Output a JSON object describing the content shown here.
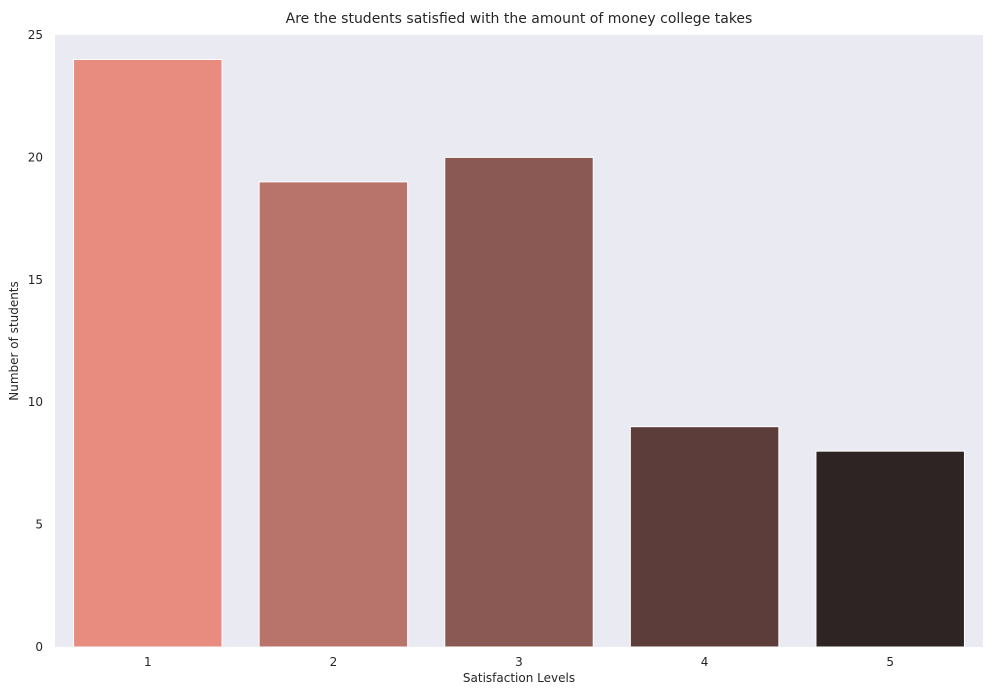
{
  "chart_data": {
    "type": "bar",
    "title": "Are the students satisfied with the amount of money college takes",
    "xlabel": "Satisfaction Levels",
    "ylabel": "Number of students",
    "categories": [
      "1",
      "2",
      "3",
      "4",
      "5"
    ],
    "values": [
      24,
      19,
      20,
      9,
      8
    ],
    "ylim": [
      0,
      25
    ],
    "yticks": [
      0,
      5,
      10,
      15,
      20,
      25
    ],
    "grid": false,
    "background_color": "#eaeaf2",
    "bar_colors": [
      "#e88c80",
      "#b8736a",
      "#8b5953",
      "#5c3d3a",
      "#2e2423"
    ]
  }
}
